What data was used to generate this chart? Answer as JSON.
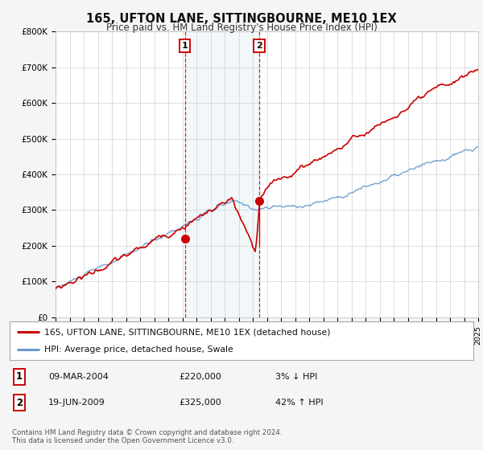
{
  "title": "165, UFTON LANE, SITTINGBOURNE, ME10 1EX",
  "subtitle": "Price paid vs. HM Land Registry's House Price Index (HPI)",
  "legend_line1": "165, UFTON LANE, SITTINGBOURNE, ME10 1EX (detached house)",
  "legend_line2": "HPI: Average price, detached house, Swale",
  "red_color": "#cc0000",
  "blue_color": "#6699cc",
  "transaction1_date": "09-MAR-2004",
  "transaction1_price": "£220,000",
  "transaction1_hpi": "3% ↓ HPI",
  "transaction2_date": "19-JUN-2009",
  "transaction2_price": "£325,000",
  "transaction2_hpi": "42% ↑ HPI",
  "footer": "Contains HM Land Registry data © Crown copyright and database right 2024.\nThis data is licensed under the Open Government Licence v3.0.",
  "ylim": [
    0,
    800000
  ],
  "yticks": [
    0,
    100000,
    200000,
    300000,
    400000,
    500000,
    600000,
    700000,
    800000
  ],
  "ytick_labels": [
    "£0",
    "£100K",
    "£200K",
    "£300K",
    "£400K",
    "£500K",
    "£600K",
    "£700K",
    "£800K"
  ],
  "xmin": 1995,
  "xmax": 2025,
  "shade_x1": 2004.19,
  "shade_x2": 2009.46,
  "vline1_x": 2004.19,
  "vline2_x": 2009.46,
  "marker1_x": 2004.19,
  "marker1_y": 220000,
  "marker2_x": 2009.46,
  "marker2_y": 325000,
  "background_color": "#f5f5f5",
  "plot_bg_color": "#ffffff"
}
